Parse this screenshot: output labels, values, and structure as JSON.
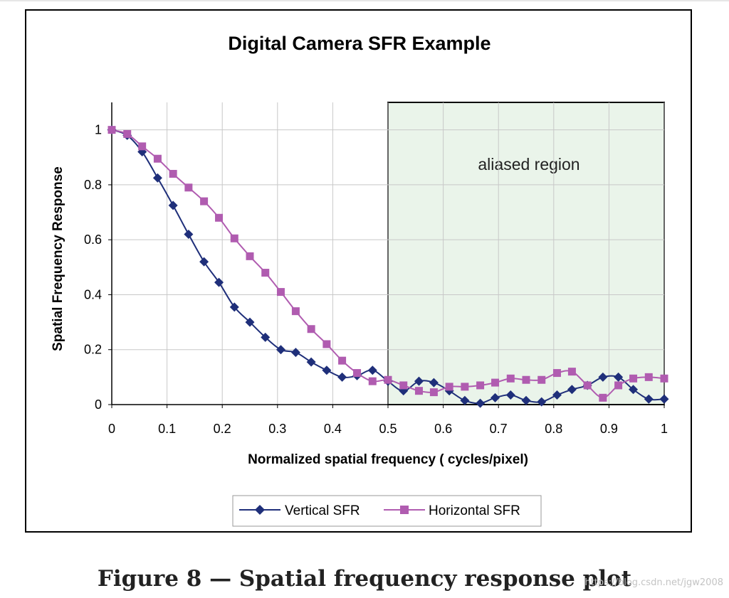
{
  "chart_data": {
    "type": "line",
    "title": "Digital Camera SFR Example",
    "xlabel": "Normalized spatial frequency ( cycles/pixel)",
    "ylabel": "Spatial Frequency Response",
    "xlim": [
      0,
      1
    ],
    "ylim": [
      0,
      1.1
    ],
    "xticks": [
      0,
      0.1,
      0.2,
      0.3,
      0.4,
      0.5,
      0.6,
      0.7,
      0.8,
      0.9,
      1
    ],
    "xtick_labels": [
      "0",
      "0.1",
      "0.2",
      "0.3",
      "0.4",
      "0.5",
      "0.6",
      "0.7",
      "0.8",
      "0.9",
      "1"
    ],
    "yticks": [
      0,
      0.2,
      0.4,
      0.6,
      0.8,
      1
    ],
    "ytick_labels": [
      "0",
      "0.2",
      "0.4",
      "0.6",
      "0.8",
      "1"
    ],
    "grid": true,
    "legend_position": "bottom",
    "region": {
      "x_start": 0.5,
      "x_end": 1,
      "label": "aliased region",
      "color": "#eaf4ea"
    },
    "series": [
      {
        "name": "Vertical SFR",
        "color": "#1f2f7a",
        "marker": "diamond",
        "x": [
          0,
          0.028,
          0.055,
          0.083,
          0.111,
          0.139,
          0.167,
          0.194,
          0.222,
          0.25,
          0.278,
          0.306,
          0.333,
          0.361,
          0.389,
          0.417,
          0.444,
          0.472,
          0.5,
          0.528,
          0.556,
          0.583,
          0.611,
          0.639,
          0.667,
          0.694,
          0.722,
          0.75,
          0.778,
          0.806,
          0.833,
          0.861,
          0.889,
          0.917,
          0.944,
          0.972,
          1
        ],
        "values": [
          1,
          0.98,
          0.92,
          0.825,
          0.725,
          0.62,
          0.52,
          0.445,
          0.355,
          0.3,
          0.245,
          0.2,
          0.19,
          0.155,
          0.125,
          0.1,
          0.105,
          0.125,
          0.085,
          0.05,
          0.085,
          0.08,
          0.05,
          0.015,
          0.005,
          0.025,
          0.035,
          0.015,
          0.01,
          0.035,
          0.055,
          0.07,
          0.1,
          0.1,
          0.055,
          0.02,
          0.02
        ]
      },
      {
        "name": "Horizontal SFR",
        "color": "#b05cb0",
        "marker": "square",
        "x": [
          0,
          0.028,
          0.055,
          0.083,
          0.111,
          0.139,
          0.167,
          0.194,
          0.222,
          0.25,
          0.278,
          0.306,
          0.333,
          0.361,
          0.389,
          0.417,
          0.444,
          0.472,
          0.5,
          0.528,
          0.556,
          0.583,
          0.611,
          0.639,
          0.667,
          0.694,
          0.722,
          0.75,
          0.778,
          0.806,
          0.833,
          0.861,
          0.889,
          0.917,
          0.944,
          0.972,
          1
        ],
        "values": [
          1,
          0.985,
          0.94,
          0.895,
          0.84,
          0.79,
          0.74,
          0.68,
          0.605,
          0.54,
          0.48,
          0.41,
          0.34,
          0.275,
          0.22,
          0.16,
          0.115,
          0.085,
          0.09,
          0.07,
          0.05,
          0.045,
          0.065,
          0.065,
          0.07,
          0.08,
          0.095,
          0.09,
          0.09,
          0.115,
          0.12,
          0.07,
          0.025,
          0.07,
          0.095,
          0.1,
          0.095
        ]
      }
    ]
  },
  "caption": "Figure 8 — Spatial frequency response plot",
  "watermark": "https://blog.csdn.net/jgw2008"
}
